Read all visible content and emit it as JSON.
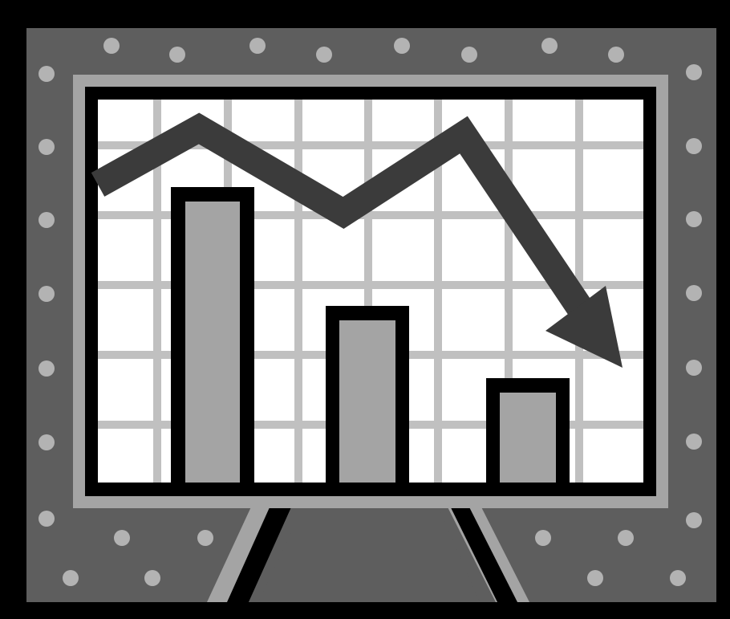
{
  "clipart": {
    "subject": "presentation-board-with-declining-bar-chart",
    "colors": {
      "outline": "#000000",
      "frame": "#5e5e5e",
      "frame_dots": "#b3b3b3",
      "inner_border": "#a4a4a4",
      "screen": "#ffffff",
      "grid": "#c0c0c0",
      "bar_fill": "#a4a4a4",
      "trend_arrow": "#3b3b3b",
      "easel_leg_highlight": "#a4a4a4"
    },
    "bars": [
      {
        "relative_height": 1.0
      },
      {
        "relative_height": 0.58
      },
      {
        "relative_height": 0.35
      }
    ],
    "trend": "downward"
  }
}
